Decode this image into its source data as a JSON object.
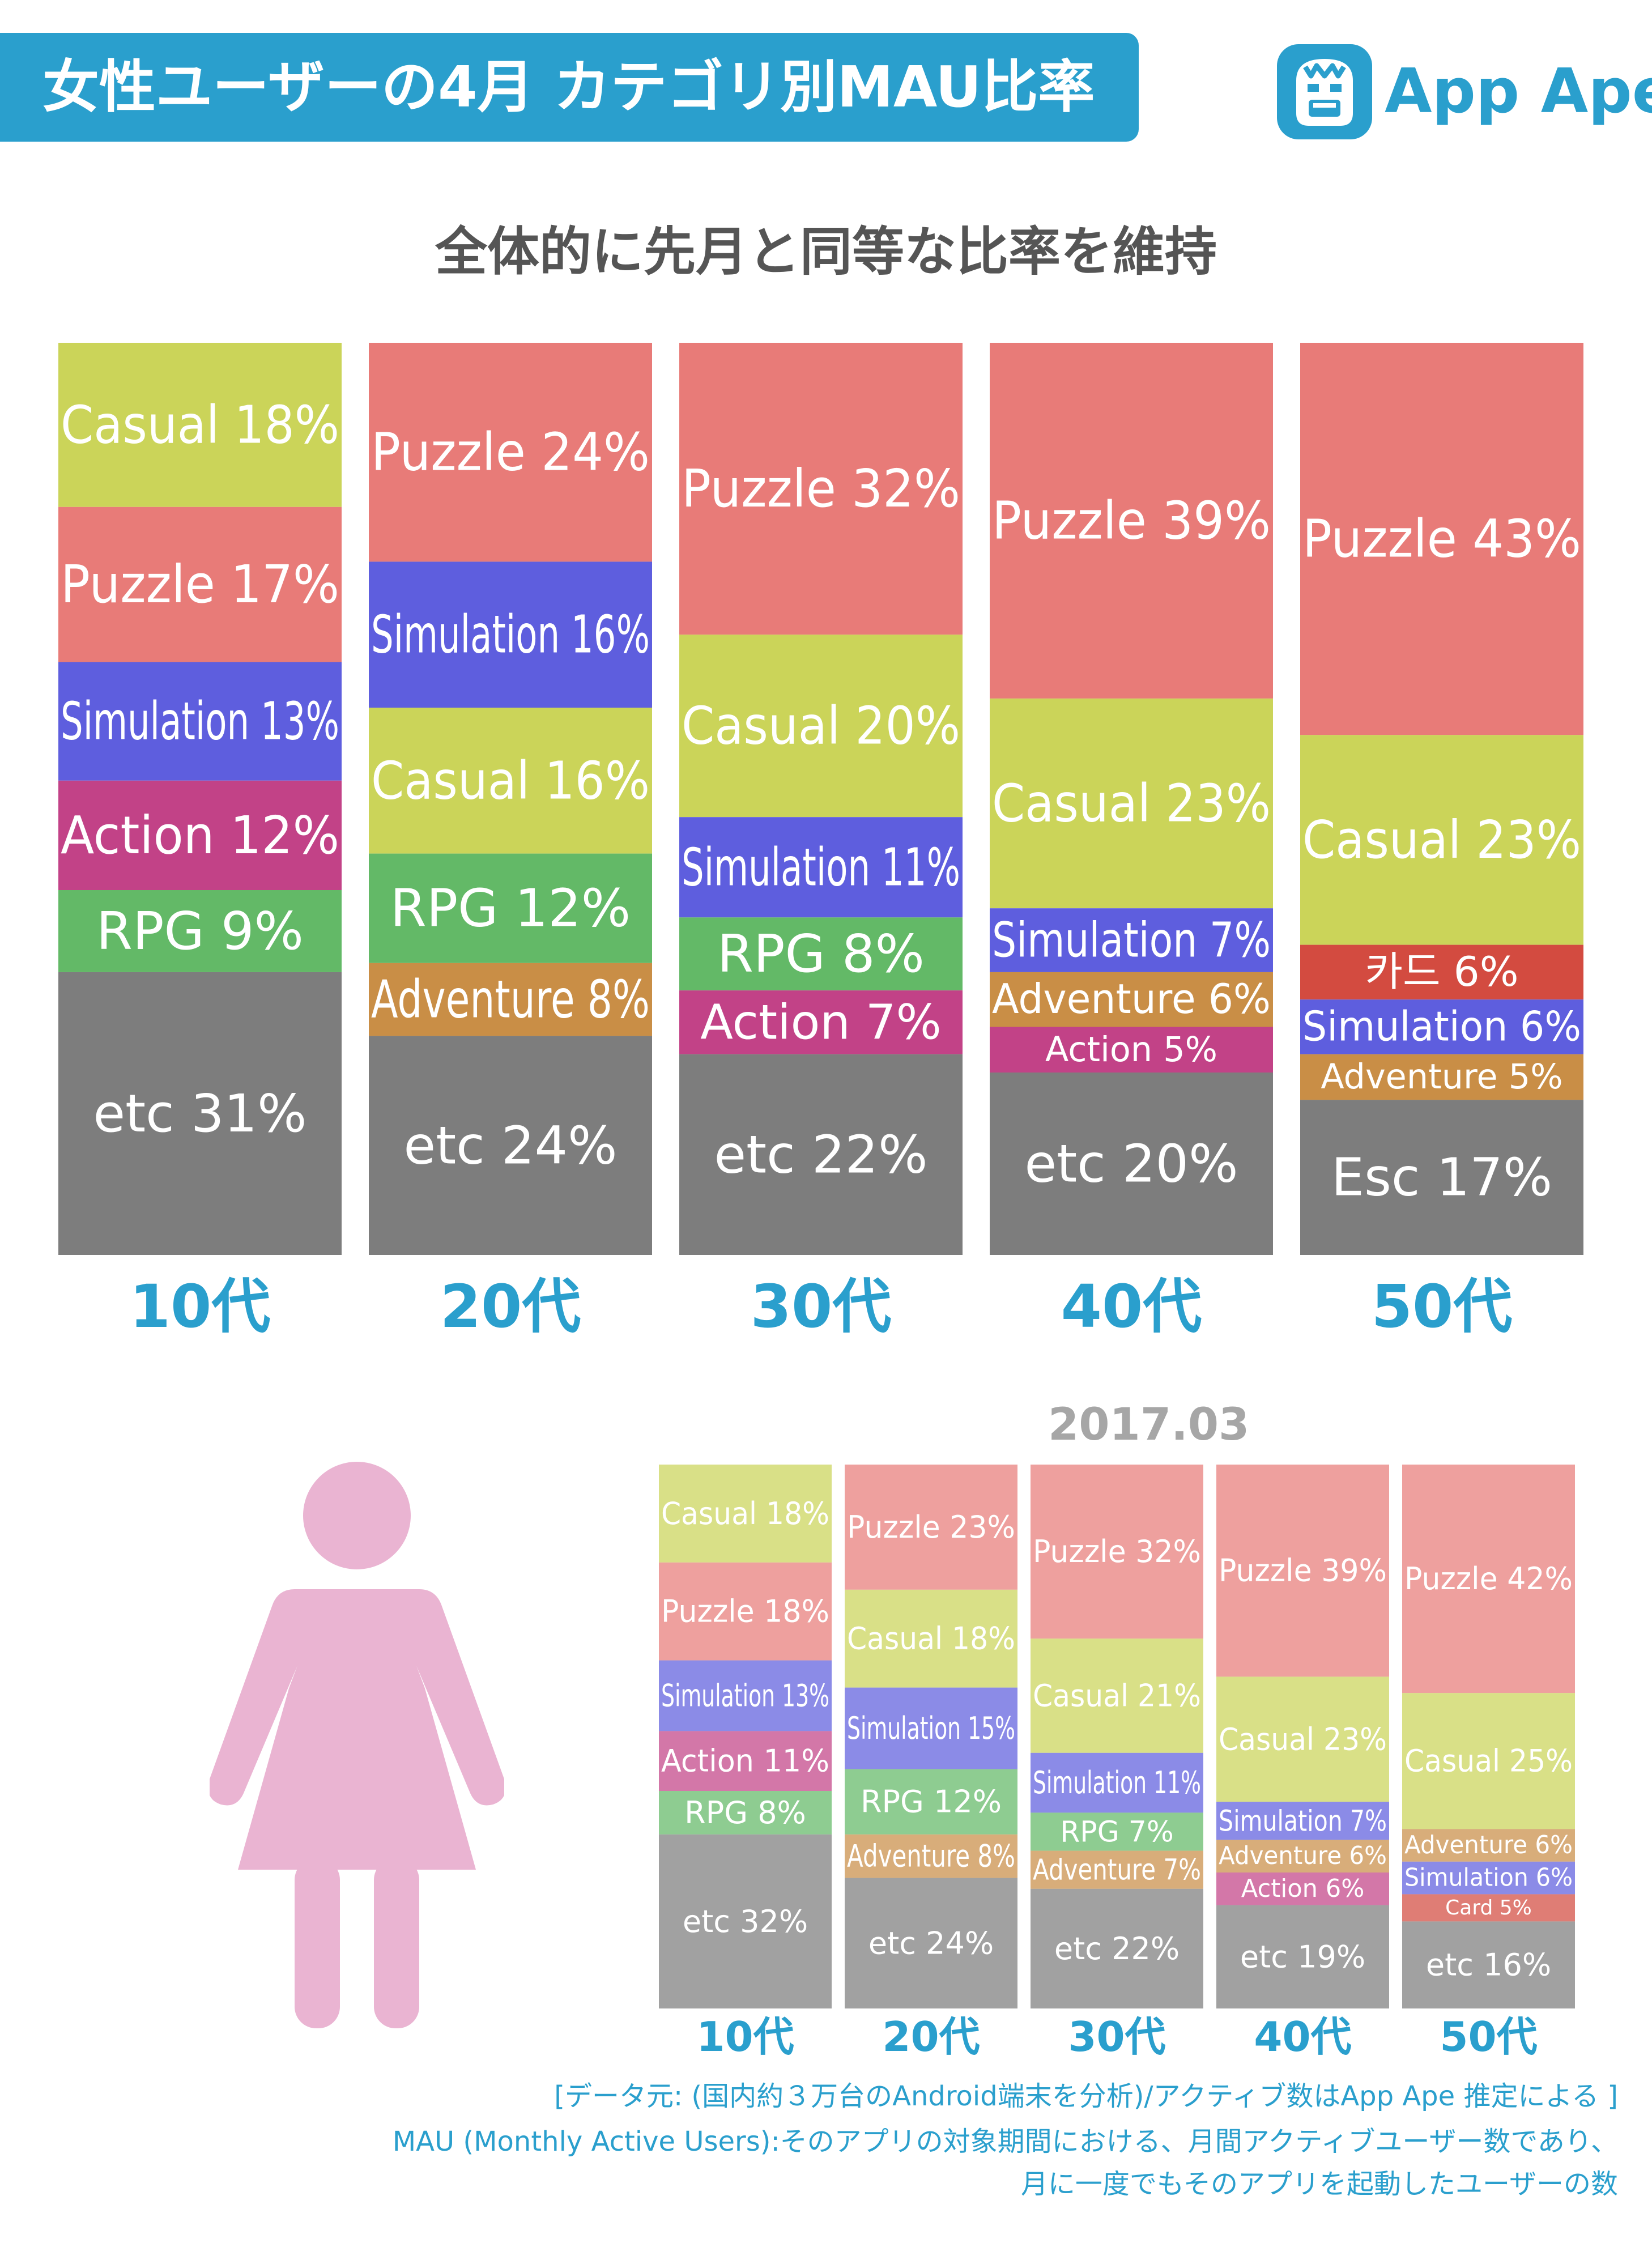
{
  "header": {
    "title": "女性ユーザーの4月 カテゴリ別MAU比率",
    "logo_text": "App Ape",
    "subtitle": "全体的に先月と同等な比率を維持"
  },
  "colors": {
    "accent": "#2a9fcd",
    "Puzzle": "#e87b78",
    "Casual": "#cbd459",
    "Simulation": "#5e5ede",
    "Action": "#c24287",
    "RPG": "#63b967",
    "Adventure": "#c98e46",
    "etc": "#7d7d7d",
    "Esc": "#7d7d7d",
    "カード": "#d34b40",
    "Card": "#d34b40",
    "woman": "#eab4d2"
  },
  "chart_data": [
    {
      "type": "bar",
      "stacked": true,
      "period": "April",
      "categories": [
        "10代",
        "20代",
        "30代",
        "40代",
        "50代"
      ],
      "ylim": [
        0,
        100
      ],
      "stacks": [
        [
          {
            "name": "Casual",
            "value": 18,
            "label": "Casual 18%"
          },
          {
            "name": "Puzzle",
            "value": 17,
            "label": "Puzzle 17%"
          },
          {
            "name": "Simulation",
            "value": 13,
            "label": "Simulation 13%"
          },
          {
            "name": "Action",
            "value": 12,
            "label": "Action 12%"
          },
          {
            "name": "RPG",
            "value": 9,
            "label": "RPG 9%"
          },
          {
            "name": "etc",
            "value": 31,
            "label": "etc 31%"
          }
        ],
        [
          {
            "name": "Puzzle",
            "value": 24,
            "label": "Puzzle 24%"
          },
          {
            "name": "Simulation",
            "value": 16,
            "label": "Simulation 16%"
          },
          {
            "name": "Casual",
            "value": 16,
            "label": "Casual 16%"
          },
          {
            "name": "RPG",
            "value": 12,
            "label": "RPG 12%"
          },
          {
            "name": "Adventure",
            "value": 8,
            "label": "Adventure 8%"
          },
          {
            "name": "etc",
            "value": 24,
            "label": "etc 24%"
          }
        ],
        [
          {
            "name": "Puzzle",
            "value": 32,
            "label": "Puzzle 32%"
          },
          {
            "name": "Casual",
            "value": 20,
            "label": "Casual 20%"
          },
          {
            "name": "Simulation",
            "value": 11,
            "label": "Simulation 11%"
          },
          {
            "name": "RPG",
            "value": 8,
            "label": "RPG 8%"
          },
          {
            "name": "Action",
            "value": 7,
            "label": "Action 7%"
          },
          {
            "name": "etc",
            "value": 22,
            "label": "etc 22%"
          }
        ],
        [
          {
            "name": "Puzzle",
            "value": 39,
            "label": "Puzzle 39%"
          },
          {
            "name": "Casual",
            "value": 23,
            "label": "Casual 23%"
          },
          {
            "name": "Simulation",
            "value": 7,
            "label": "Simulation 7%"
          },
          {
            "name": "Adventure",
            "value": 6,
            "label": "Adventure 6%"
          },
          {
            "name": "Action",
            "value": 5,
            "label": "Action 5%"
          },
          {
            "name": "etc",
            "value": 20,
            "label": "etc 20%"
          }
        ],
        [
          {
            "name": "Puzzle",
            "value": 43,
            "label": "Puzzle 43%"
          },
          {
            "name": "Casual",
            "value": 23,
            "label": "Casual 23%"
          },
          {
            "name": "カード",
            "value": 6,
            "label": "카드 6%"
          },
          {
            "name": "Simulation",
            "value": 6,
            "label": "Simulation 6%"
          },
          {
            "name": "Adventure",
            "value": 5,
            "label": "Adventure 5%"
          },
          {
            "name": "Esc",
            "value": 17,
            "label": "Esc 17%"
          }
        ]
      ]
    },
    {
      "type": "bar",
      "stacked": true,
      "title": "2017.03",
      "categories": [
        "10代",
        "20代",
        "30代",
        "40代",
        "50代"
      ],
      "ylim": [
        0,
        100
      ],
      "stacks": [
        [
          {
            "name": "Casual",
            "value": 18,
            "label": "Casual 18%"
          },
          {
            "name": "Puzzle",
            "value": 18,
            "label": "Puzzle 18%"
          },
          {
            "name": "Simulation",
            "value": 13,
            "label": "Simulation 13%"
          },
          {
            "name": "Action",
            "value": 11,
            "label": "Action 11%"
          },
          {
            "name": "RPG",
            "value": 8,
            "label": "RPG 8%"
          },
          {
            "name": "etc",
            "value": 32,
            "label": "etc 32%"
          }
        ],
        [
          {
            "name": "Puzzle",
            "value": 23,
            "label": "Puzzle 23%"
          },
          {
            "name": "Casual",
            "value": 18,
            "label": "Casual 18%"
          },
          {
            "name": "Simulation",
            "value": 15,
            "label": "Simulation 15%"
          },
          {
            "name": "RPG",
            "value": 12,
            "label": "RPG 12%"
          },
          {
            "name": "Adventure",
            "value": 8,
            "label": "Adventure 8%"
          },
          {
            "name": "etc",
            "value": 24,
            "label": "etc 24%"
          }
        ],
        [
          {
            "name": "Puzzle",
            "value": 32,
            "label": "Puzzle 32%"
          },
          {
            "name": "Casual",
            "value": 21,
            "label": "Casual 21%"
          },
          {
            "name": "Simulation",
            "value": 11,
            "label": "Simulation 11%"
          },
          {
            "name": "RPG",
            "value": 7,
            "label": "RPG 7%"
          },
          {
            "name": "Adventure",
            "value": 7,
            "label": "Adventure 7%"
          },
          {
            "name": "etc",
            "value": 22,
            "label": "etc 22%"
          }
        ],
        [
          {
            "name": "Puzzle",
            "value": 39,
            "label": "Puzzle 39%"
          },
          {
            "name": "Casual",
            "value": 23,
            "label": "Casual 23%"
          },
          {
            "name": "Simulation",
            "value": 7,
            "label": "Simulation 7%"
          },
          {
            "name": "Adventure",
            "value": 6,
            "label": "Adventure 6%"
          },
          {
            "name": "Action",
            "value": 6,
            "label": "Action 6%"
          },
          {
            "name": "etc",
            "value": 19,
            "label": "etc 19%"
          }
        ],
        [
          {
            "name": "Puzzle",
            "value": 42,
            "label": "Puzzle 42%"
          },
          {
            "name": "Casual",
            "value": 25,
            "label": "Casual 25%"
          },
          {
            "name": "Adventure",
            "value": 6,
            "label": "Adventure 6%"
          },
          {
            "name": "Simulation",
            "value": 6,
            "label": "Simulation 6%"
          },
          {
            "name": "Card",
            "value": 5,
            "label": "Card 5%"
          },
          {
            "name": "etc",
            "value": 16,
            "label": "etc 16%"
          }
        ]
      ]
    }
  ],
  "footnote": {
    "line1": "[データ元: (国内約３万台のAndroid端末を分析)/アクティブ数はApp Ape 推定による ]",
    "line2": "MAU (Monthly Active Users):そのアプリの対象期間における、月間アクティブユーザー数であり、",
    "line3": "月に一度でもそのアプリを起動したユーザーの数"
  }
}
